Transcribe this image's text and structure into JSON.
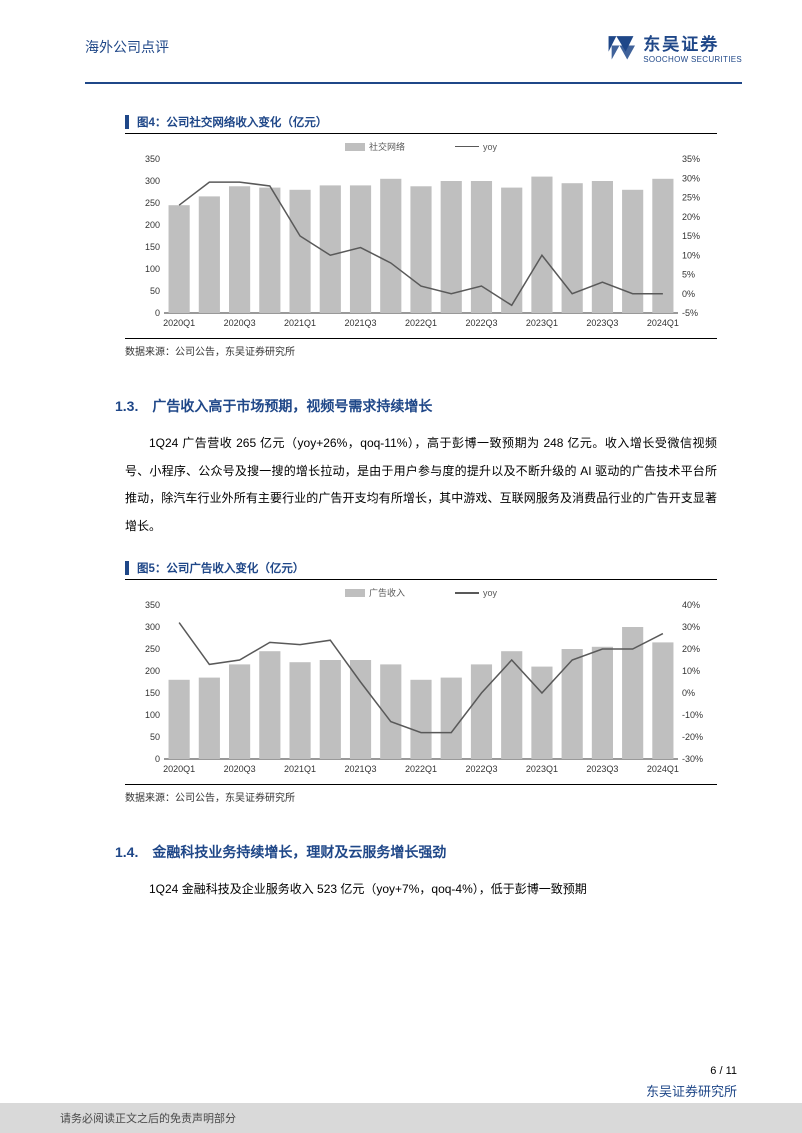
{
  "header": {
    "title": "海外公司点评",
    "logo_cn": "东吴证券",
    "logo_en": "SOOCHOW SECURITIES"
  },
  "fig4": {
    "title": "图4：公司社交网络收入变化（亿元）",
    "source": "数据来源：公司公告，东吴证券研究所",
    "type": "bar+line",
    "legend_bar": "社交网络",
    "legend_line": "yoy",
    "x_labels": [
      "2020Q1",
      "2020Q3",
      "2021Q1",
      "2021Q3",
      "2022Q1",
      "2022Q3",
      "2023Q1",
      "2023Q3",
      "2024Q1"
    ],
    "y_left": {
      "min": 0,
      "max": 350,
      "step": 50
    },
    "y_right": {
      "min": -5,
      "max": 35,
      "step": 5,
      "suffix": "%"
    },
    "bars": [
      245,
      265,
      288,
      285,
      280,
      290,
      290,
      305,
      288,
      300,
      300,
      285,
      310,
      295,
      300,
      280,
      305
    ],
    "line_yoy": [
      23,
      29,
      29,
      28,
      15,
      10,
      12,
      8,
      2,
      0,
      2,
      -3,
      10,
      0,
      3,
      0,
      0
    ],
    "bar_color": "#bfbfbf",
    "line_color": "#595959",
    "grid_color": "#e0e0e0",
    "background_color": "#ffffff",
    "label_fontsize": 9
  },
  "section13": {
    "heading": "1.3.　广告收入高于市场预期，视频号需求持续增长",
    "para": "1Q24 广告营收 265 亿元（yoy+26%，qoq-11%），高于彭博一致预期为 248 亿元。收入增长受微信视频号、小程序、公众号及搜一搜的增长拉动，是由于用户参与度的提升以及不断升级的 AI 驱动的广告技术平台所推动，除汽车行业外所有主要行业的广告开支均有所增长，其中游戏、互联网服务及消费品行业的广告开支显著增长。"
  },
  "fig5": {
    "title": "图5：公司广告收入变化（亿元）",
    "source": "数据来源：公司公告，东吴证券研究所",
    "type": "bar+line",
    "legend_bar": "广告收入",
    "legend_line": "yoy",
    "x_labels": [
      "2020Q1",
      "2020Q3",
      "2021Q1",
      "2021Q3",
      "2022Q1",
      "2022Q3",
      "2023Q1",
      "2023Q3",
      "2024Q1"
    ],
    "y_left": {
      "min": 0,
      "max": 350,
      "step": 50
    },
    "y_right": {
      "min": -30,
      "max": 40,
      "step": 10,
      "suffix": "%"
    },
    "bars": [
      180,
      185,
      215,
      245,
      220,
      225,
      225,
      215,
      180,
      185,
      215,
      245,
      210,
      250,
      255,
      300,
      265
    ],
    "line_yoy": [
      32,
      13,
      15,
      23,
      22,
      24,
      5,
      -13,
      -18,
      -18,
      0,
      15,
      0,
      15,
      20,
      20,
      27
    ],
    "bar_color": "#bfbfbf",
    "line_color": "#595959",
    "grid_color": "#e0e0e0",
    "background_color": "#ffffff",
    "label_fontsize": 9
  },
  "section14": {
    "heading": "1.4.　金融科技业务持续增长，理财及云服务增长强劲",
    "para": "1Q24 金融科技及企业服务收入 523 亿元（yoy+7%，qoq-4%），低于彭博一致预期"
  },
  "footer": {
    "disclaimer": "请务必阅读正文之后的免责声明部分",
    "brand": "东吴证券研究所",
    "page": "6 / 11"
  }
}
